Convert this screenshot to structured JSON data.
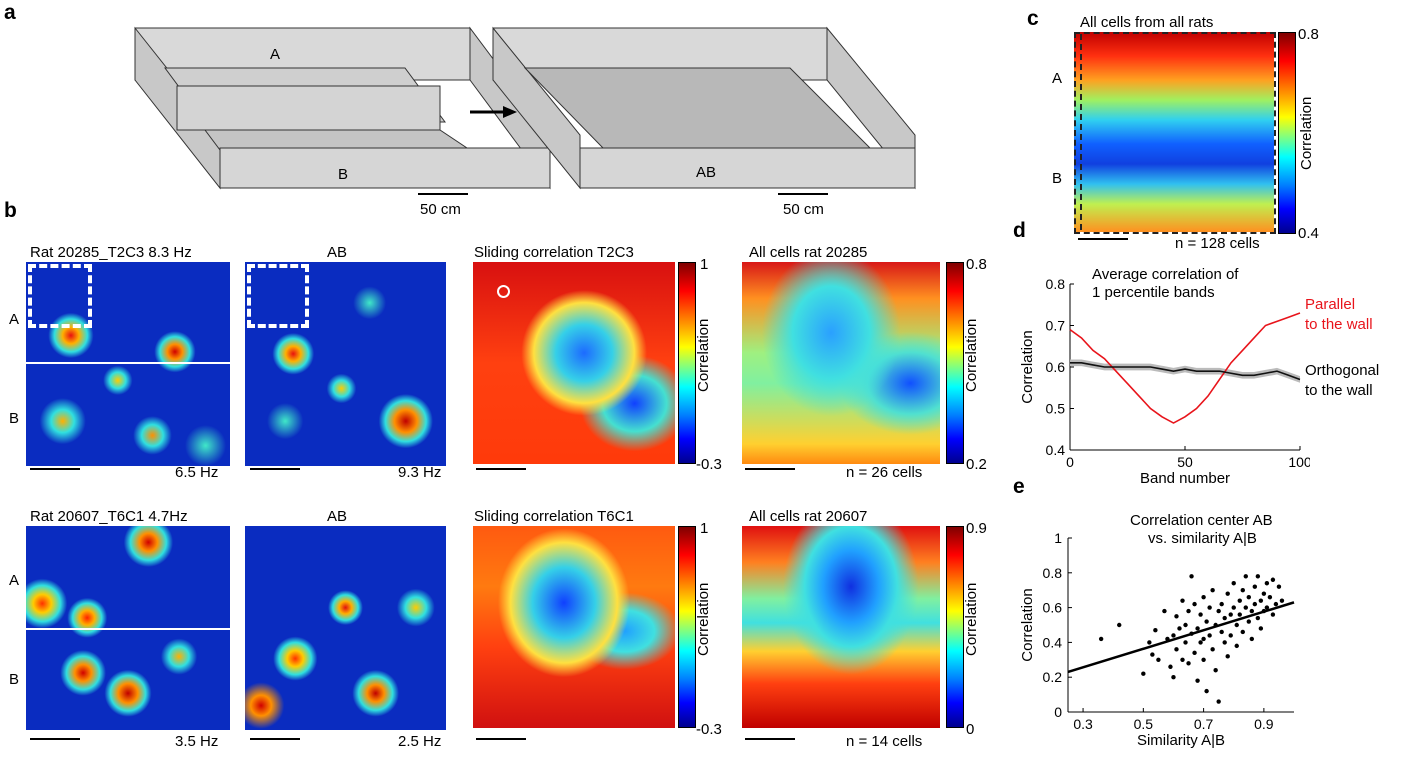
{
  "panels": {
    "a": "a",
    "b": "b",
    "c": "c",
    "d": "d",
    "e": "e"
  },
  "panel_a": {
    "box1": {
      "label_a": "A",
      "label_b": "B",
      "scale": "50 cm"
    },
    "box2": {
      "label": "AB",
      "scale": "50 cm"
    }
  },
  "panel_b": {
    "row1": {
      "rate_map_title": "Rat 20285_T2C3  8.3 Hz",
      "rate_map_row_a": "A",
      "rate_map_row_b": "B",
      "rate_map_peak_b": "6.5 Hz",
      "ab_title": "AB",
      "ab_peak": "9.3 Hz",
      "sliding_title": "Sliding correlation T2C3",
      "sliding_cbar_max": "1",
      "sliding_cbar_min": "-0.3",
      "sliding_cbar_label": "Correlation",
      "allcells_title": "All cells rat 20285",
      "allcells_cbar_max": "0.8",
      "allcells_cbar_min": "0.2",
      "allcells_cbar_label": "Correlation",
      "allcells_n": "n = 26 cells"
    },
    "row2": {
      "rate_map_title": "Rat 20607_T6C1  4.7Hz",
      "rate_map_row_a": "A",
      "rate_map_row_b": "B",
      "rate_map_peak_b": "3.5 Hz",
      "ab_title": "AB",
      "ab_peak": "2.5 Hz",
      "sliding_title": "Sliding correlation T6C1",
      "sliding_cbar_max": "1",
      "sliding_cbar_min": "-0.3",
      "sliding_cbar_label": "Correlation",
      "allcells_title": "All cells rat 20607",
      "allcells_cbar_max": "0.9",
      "allcells_cbar_min": "0",
      "allcells_cbar_label": "Correlation",
      "allcells_n": "n = 14 cells"
    }
  },
  "panel_c": {
    "title": "All cells from all rats",
    "row_a": "A",
    "row_b": "B",
    "cbar_max": "0.8",
    "cbar_min": "0.4",
    "cbar_label": "Correlation",
    "n": "n = 128 cells"
  },
  "panel_d": {
    "title_line1": "Average correlation of",
    "title_line2": "1 percentile bands",
    "parallel_line1": "Parallel",
    "parallel_line2": "to the wall",
    "orth_line1": "Orthogonal",
    "orth_line2": "to the wall",
    "parallel_color": "#e8141b",
    "orth_color": "#111111"
  },
  "panel_e": {
    "title_line1": "Correlation center AB",
    "title_line2": "vs. similarity A|B"
  },
  "chart_data": [
    {
      "type": "line",
      "panel": "d",
      "xlabel": "Band number",
      "ylabel": "Correlation",
      "xlim": [
        0,
        100
      ],
      "ylim": [
        0.4,
        0.8
      ],
      "xticks": [
        0,
        50,
        100
      ],
      "yticks": [
        0.4,
        0.5,
        0.6,
        0.7,
        0.8
      ],
      "x": [
        0,
        5,
        10,
        15,
        20,
        25,
        30,
        35,
        40,
        45,
        50,
        55,
        60,
        65,
        70,
        75,
        80,
        85,
        90,
        95,
        100
      ],
      "series": [
        {
          "name": "Parallel to the wall",
          "color": "#e8141b",
          "values": [
            0.69,
            0.67,
            0.64,
            0.62,
            0.59,
            0.56,
            0.53,
            0.5,
            0.48,
            0.465,
            0.48,
            0.5,
            0.53,
            0.57,
            0.61,
            0.64,
            0.67,
            0.7,
            0.71,
            0.72,
            0.73
          ]
        },
        {
          "name": "Orthogonal to the wall",
          "color": "#111111",
          "values": [
            0.61,
            0.61,
            0.605,
            0.6,
            0.6,
            0.6,
            0.6,
            0.6,
            0.595,
            0.59,
            0.595,
            0.59,
            0.59,
            0.59,
            0.585,
            0.58,
            0.58,
            0.585,
            0.59,
            0.58,
            0.57
          ]
        }
      ]
    },
    {
      "type": "scatter",
      "panel": "e",
      "xlabel": "Similarity A|B",
      "ylabel": "Correlation",
      "xlim": [
        0.25,
        1.0
      ],
      "ylim": [
        0,
        1
      ],
      "xticks": [
        0.3,
        0.5,
        0.7,
        0.9
      ],
      "yticks": [
        0,
        0.2,
        0.4,
        0.6,
        0.8,
        1
      ],
      "fit_line": {
        "x": [
          0.25,
          1.0
        ],
        "y": [
          0.23,
          0.63
        ]
      },
      "points": [
        [
          0.36,
          0.42
        ],
        [
          0.42,
          0.5
        ],
        [
          0.5,
          0.22
        ],
        [
          0.52,
          0.4
        ],
        [
          0.53,
          0.33
        ],
        [
          0.54,
          0.47
        ],
        [
          0.55,
          0.3
        ],
        [
          0.57,
          0.58
        ],
        [
          0.58,
          0.42
        ],
        [
          0.59,
          0.26
        ],
        [
          0.6,
          0.44
        ],
        [
          0.6,
          0.2
        ],
        [
          0.61,
          0.55
        ],
        [
          0.61,
          0.36
        ],
        [
          0.62,
          0.48
        ],
        [
          0.63,
          0.64
        ],
        [
          0.63,
          0.3
        ],
        [
          0.64,
          0.5
        ],
        [
          0.64,
          0.4
        ],
        [
          0.65,
          0.58
        ],
        [
          0.65,
          0.28
        ],
        [
          0.66,
          0.45
        ],
        [
          0.66,
          0.78
        ],
        [
          0.67,
          0.34
        ],
        [
          0.67,
          0.62
        ],
        [
          0.68,
          0.48
        ],
        [
          0.68,
          0.18
        ],
        [
          0.69,
          0.56
        ],
        [
          0.69,
          0.4
        ],
        [
          0.7,
          0.66
        ],
        [
          0.7,
          0.42
        ],
        [
          0.7,
          0.3
        ],
        [
          0.71,
          0.52
        ],
        [
          0.71,
          0.12
        ],
        [
          0.72,
          0.6
        ],
        [
          0.72,
          0.44
        ],
        [
          0.73,
          0.36
        ],
        [
          0.73,
          0.7
        ],
        [
          0.74,
          0.5
        ],
        [
          0.74,
          0.24
        ],
        [
          0.75,
          0.58
        ],
        [
          0.75,
          0.06
        ],
        [
          0.76,
          0.46
        ],
        [
          0.76,
          0.62
        ],
        [
          0.77,
          0.4
        ],
        [
          0.77,
          0.54
        ],
        [
          0.78,
          0.68
        ],
        [
          0.78,
          0.32
        ],
        [
          0.79,
          0.56
        ],
        [
          0.79,
          0.44
        ],
        [
          0.8,
          0.6
        ],
        [
          0.8,
          0.74
        ],
        [
          0.81,
          0.5
        ],
        [
          0.81,
          0.38
        ],
        [
          0.82,
          0.64
        ],
        [
          0.82,
          0.56
        ],
        [
          0.83,
          0.7
        ],
        [
          0.83,
          0.46
        ],
        [
          0.84,
          0.6
        ],
        [
          0.84,
          0.78
        ],
        [
          0.85,
          0.52
        ],
        [
          0.85,
          0.66
        ],
        [
          0.86,
          0.58
        ],
        [
          0.86,
          0.42
        ],
        [
          0.87,
          0.72
        ],
        [
          0.87,
          0.62
        ],
        [
          0.88,
          0.54
        ],
        [
          0.88,
          0.78
        ],
        [
          0.89,
          0.64
        ],
        [
          0.89,
          0.48
        ],
        [
          0.9,
          0.68
        ],
        [
          0.9,
          0.58
        ],
        [
          0.91,
          0.74
        ],
        [
          0.91,
          0.6
        ],
        [
          0.92,
          0.66
        ],
        [
          0.93,
          0.76
        ],
        [
          0.93,
          0.56
        ],
        [
          0.94,
          0.62
        ],
        [
          0.95,
          0.72
        ],
        [
          0.96,
          0.64
        ]
      ]
    }
  ]
}
